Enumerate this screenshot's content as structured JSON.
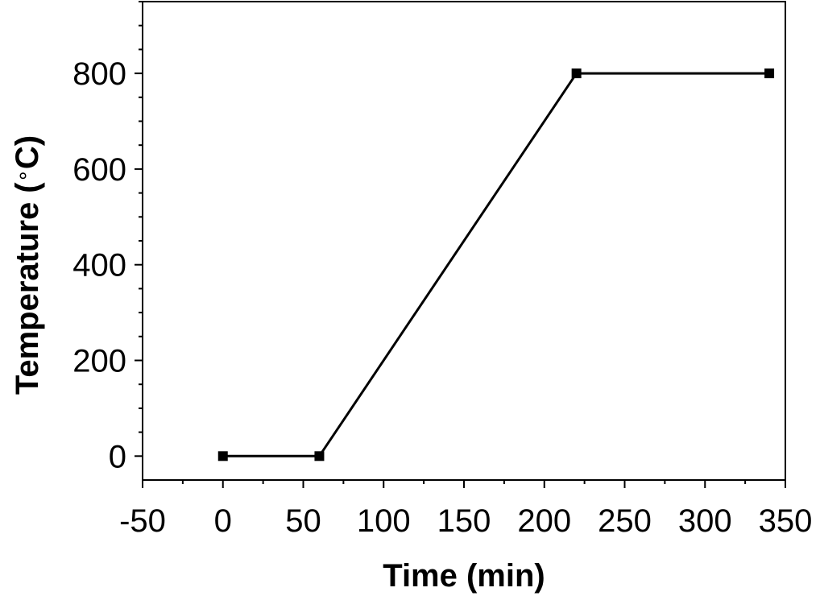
{
  "chart_data": {
    "type": "line",
    "title": "",
    "xlabel": "Time (min)",
    "ylabel_main": "Temperature (",
    "ylabel_degree": "∘",
    "ylabel_tail": "C)",
    "xlim": [
      -50,
      350
    ],
    "ylim": [
      -50,
      950
    ],
    "x_ticks": [
      -50,
      0,
      50,
      100,
      150,
      200,
      250,
      300,
      350
    ],
    "x_tick_labels": [
      "-50",
      "0",
      "50",
      "100",
      "150",
      "200",
      "250",
      "300",
      "350"
    ],
    "y_ticks": [
      0,
      200,
      400,
      600,
      800
    ],
    "y_tick_labels": [
      "0",
      "200",
      "400",
      "600",
      "800"
    ],
    "grid": false,
    "series": [
      {
        "color": "#000000",
        "marker": "square",
        "points": [
          {
            "x": 0,
            "y": 0
          },
          {
            "x": 60,
            "y": 0
          },
          {
            "x": 220,
            "y": 800
          },
          {
            "x": 340,
            "y": 800
          }
        ]
      }
    ]
  }
}
